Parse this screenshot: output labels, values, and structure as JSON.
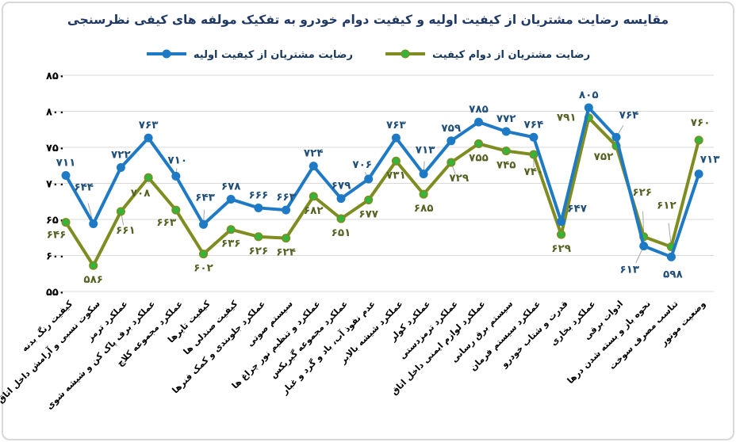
{
  "title": "مقایسه رضایت مشتریان از کیفیت اولیه و کیفیت دوام خودرو به تفکیک مولفه های کیفی نظرسنجی",
  "legend": [
    {
      "label": "رضایت مشتریان از کیفیت اولیه"
    },
    {
      "label": "رضایت مشتریان از دوام کیفیت"
    }
  ],
  "colors": {
    "title_text": "#1F3864",
    "legend_text": "#17375E",
    "blue_line": "#1F7AC5",
    "blue_label": "#1F4E79",
    "olive_line": "#7E8C20",
    "green_marker": "#36B43A",
    "green_label": "#546223",
    "gridline": "#D9D9D9",
    "leader_line": "#A6A6A6",
    "axis_text": "#000000"
  },
  "chart_data": {
    "type": "line",
    "title": "مقایسه رضایت مشتریان از کیفیت اولیه و کیفیت دوام خودرو به تفکیک مولفه های کیفی نظرسنجی",
    "xlabel": "",
    "ylabel": "",
    "ylim": [
      550,
      850
    ],
    "yticks": [
      550,
      600,
      650,
      700,
      750,
      800,
      850
    ],
    "grid": true,
    "legend_position": "top",
    "digit_style": "persian",
    "categories": [
      "کیفیت رنگ بدنه",
      "سکوت نسبی و آرامش داخل اتاق",
      "عملکرد ترمز",
      "عملکرد برف پاک کن و شیشه شوی",
      "عملکرد مجموعه کلاچ",
      "کیفیت تایرها",
      "کیفیت صندلی ها",
      "عملکرد جلوبندی و کمک فنرها",
      "سیستم صوتی",
      "عملکرد و تنظیم نور چراغ ها",
      "عملکرد مجموعه گیربکس",
      "عدم نفوذ آب، باد و گرد و غبار",
      "عملکرد شیشه بالابر",
      "عملکرد کولر",
      "عملکرد ترمزدستی",
      "عملکرد لوازم ایمنی داخل اتاق",
      "سیستم برق رسانی",
      "عملکرد سیستم فرمان",
      "قدرت و شتاب خودرو",
      "عملکرد بخاری",
      "ادوات برقی",
      "نحوه باز و بسته شدن درها",
      "تناسب مصرف سوخت",
      "وضعیت موتور"
    ],
    "series": [
      {
        "name": "رضایت مشتریان از کیفیت اولیه",
        "values": [
          711,
          644,
          722,
          763,
          710,
          643,
          678,
          666,
          663,
          724,
          679,
          706,
          763,
          713,
          759,
          785,
          772,
          764,
          647,
          805,
          764,
          613,
          598,
          713
        ]
      },
      {
        "name": "رضایت مشتریان از دوام کیفیت",
        "values": [
          646,
          586,
          661,
          708,
          663,
          602,
          636,
          626,
          624,
          682,
          651,
          677,
          731,
          685,
          729,
          755,
          745,
          740,
          629,
          791,
          752,
          626,
          612,
          760
        ]
      }
    ]
  }
}
